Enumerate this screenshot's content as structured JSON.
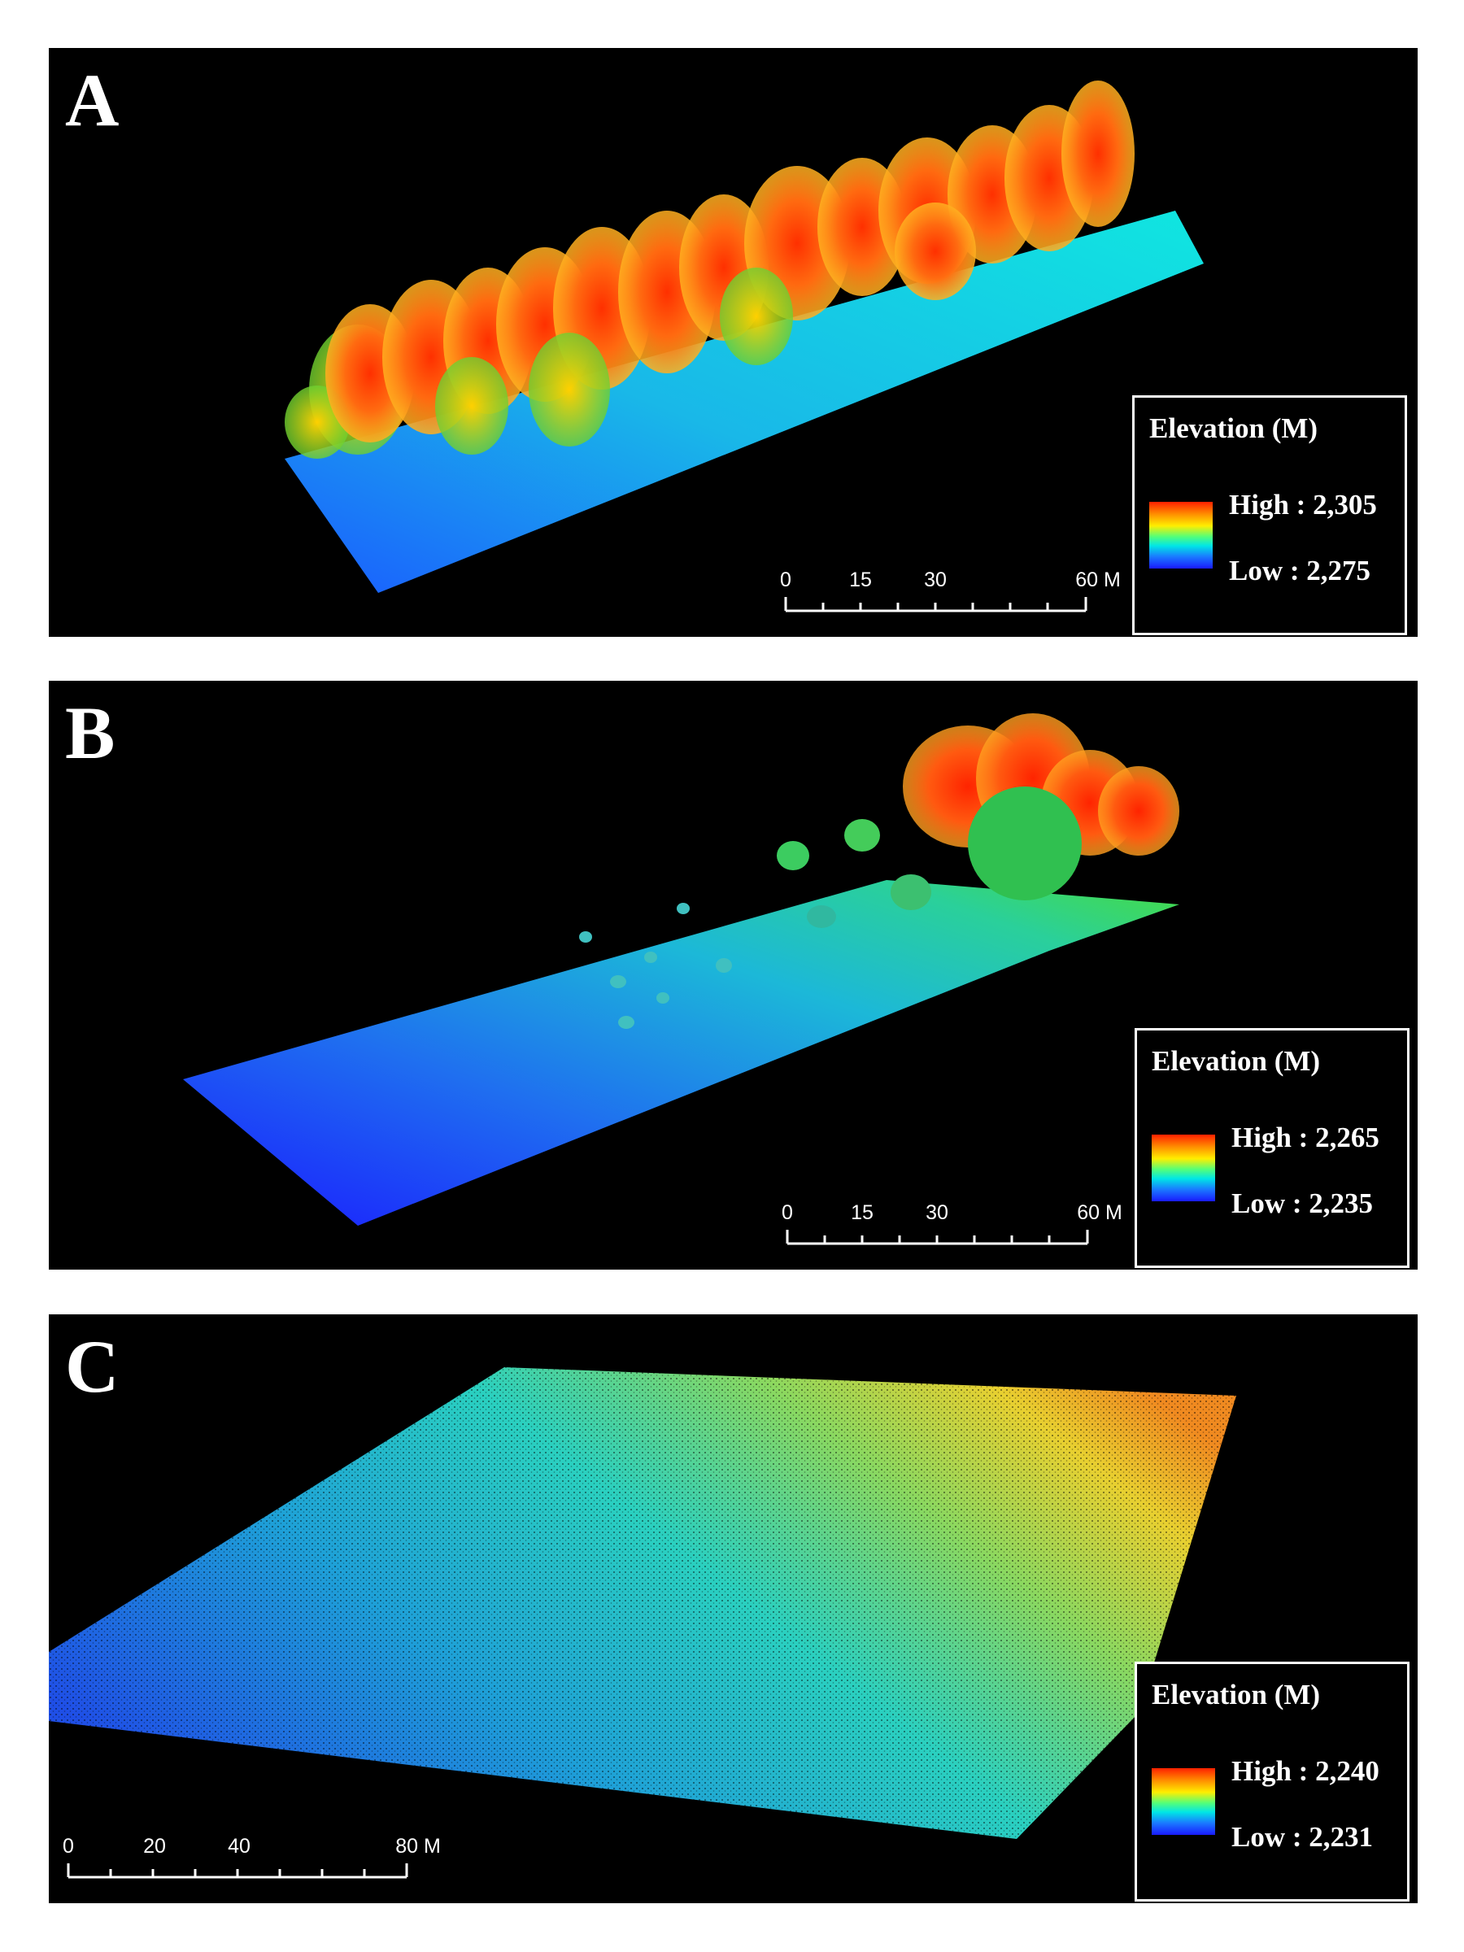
{
  "figure": {
    "panels": [
      {
        "letter": "A",
        "legend": {
          "title": "Elevation (M)",
          "high_label": "High : 2,305",
          "low_label": "Low : 2,275"
        },
        "scalebar": {
          "ticks": [
            "0",
            "15",
            "30",
            "60 M"
          ]
        }
      },
      {
        "letter": "B",
        "legend": {
          "title": "Elevation (M)",
          "high_label": "High : 2,265",
          "low_label": "Low : 2,235"
        },
        "scalebar": {
          "ticks": [
            "0",
            "15",
            "30",
            "60 M"
          ]
        }
      },
      {
        "letter": "C",
        "legend": {
          "title": "Elevation (M)",
          "high_label": "High : 2,240",
          "low_label": "Low : 2,231"
        },
        "scalebar": {
          "ticks": [
            "0",
            "20",
            "40",
            "80 M"
          ]
        }
      }
    ],
    "colors": {
      "background": "#000000",
      "ramp_high": "#ff2000",
      "ramp_mid": "#00e6e6",
      "ramp_low": "#1a1aff"
    }
  }
}
